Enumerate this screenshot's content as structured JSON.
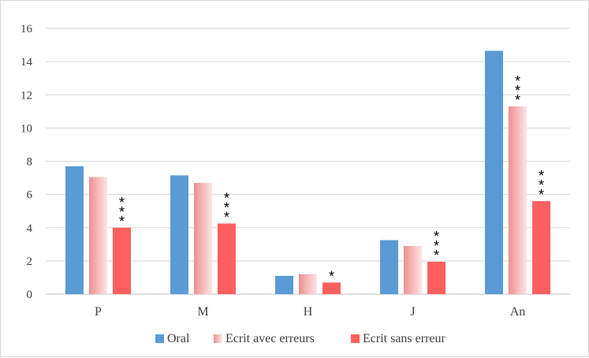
{
  "chart_data": {
    "type": "bar",
    "categories": [
      "P",
      "M",
      "H",
      "J",
      "An"
    ],
    "series": [
      {
        "name": "Oral",
        "color": "#5b9bd5",
        "values": [
          7.7,
          7.15,
          1.1,
          3.25,
          14.65
        ]
      },
      {
        "name": "Ecrit avec erreurs",
        "color": "#f4a0a0",
        "values": [
          7.05,
          6.7,
          1.2,
          2.9,
          11.3
        ]
      },
      {
        "name": "Ecrit sans erreur",
        "color": "#ff5f5f",
        "values": [
          4.0,
          4.25,
          0.7,
          1.95,
          5.6
        ]
      }
    ],
    "annotations": [
      {
        "category": "P",
        "series": "Ecrit sans erreur",
        "text": "***"
      },
      {
        "category": "M",
        "series": "Ecrit sans erreur",
        "text": "***"
      },
      {
        "category": "H",
        "series": "Ecrit sans erreur",
        "text": "*"
      },
      {
        "category": "J",
        "series": "Ecrit sans erreur",
        "text": "***"
      },
      {
        "category": "An",
        "series": "Ecrit avec erreurs",
        "text": "***"
      },
      {
        "category": "An",
        "series": "Ecrit sans erreur",
        "text": "***"
      }
    ],
    "ylim": [
      0,
      16
    ],
    "yticks": [
      "0",
      "2",
      "4",
      "6",
      "8",
      "10",
      "12",
      "14",
      "16"
    ],
    "grid": true,
    "legend_position": "bottom",
    "title": "",
    "xlabel": "",
    "ylabel": ""
  }
}
